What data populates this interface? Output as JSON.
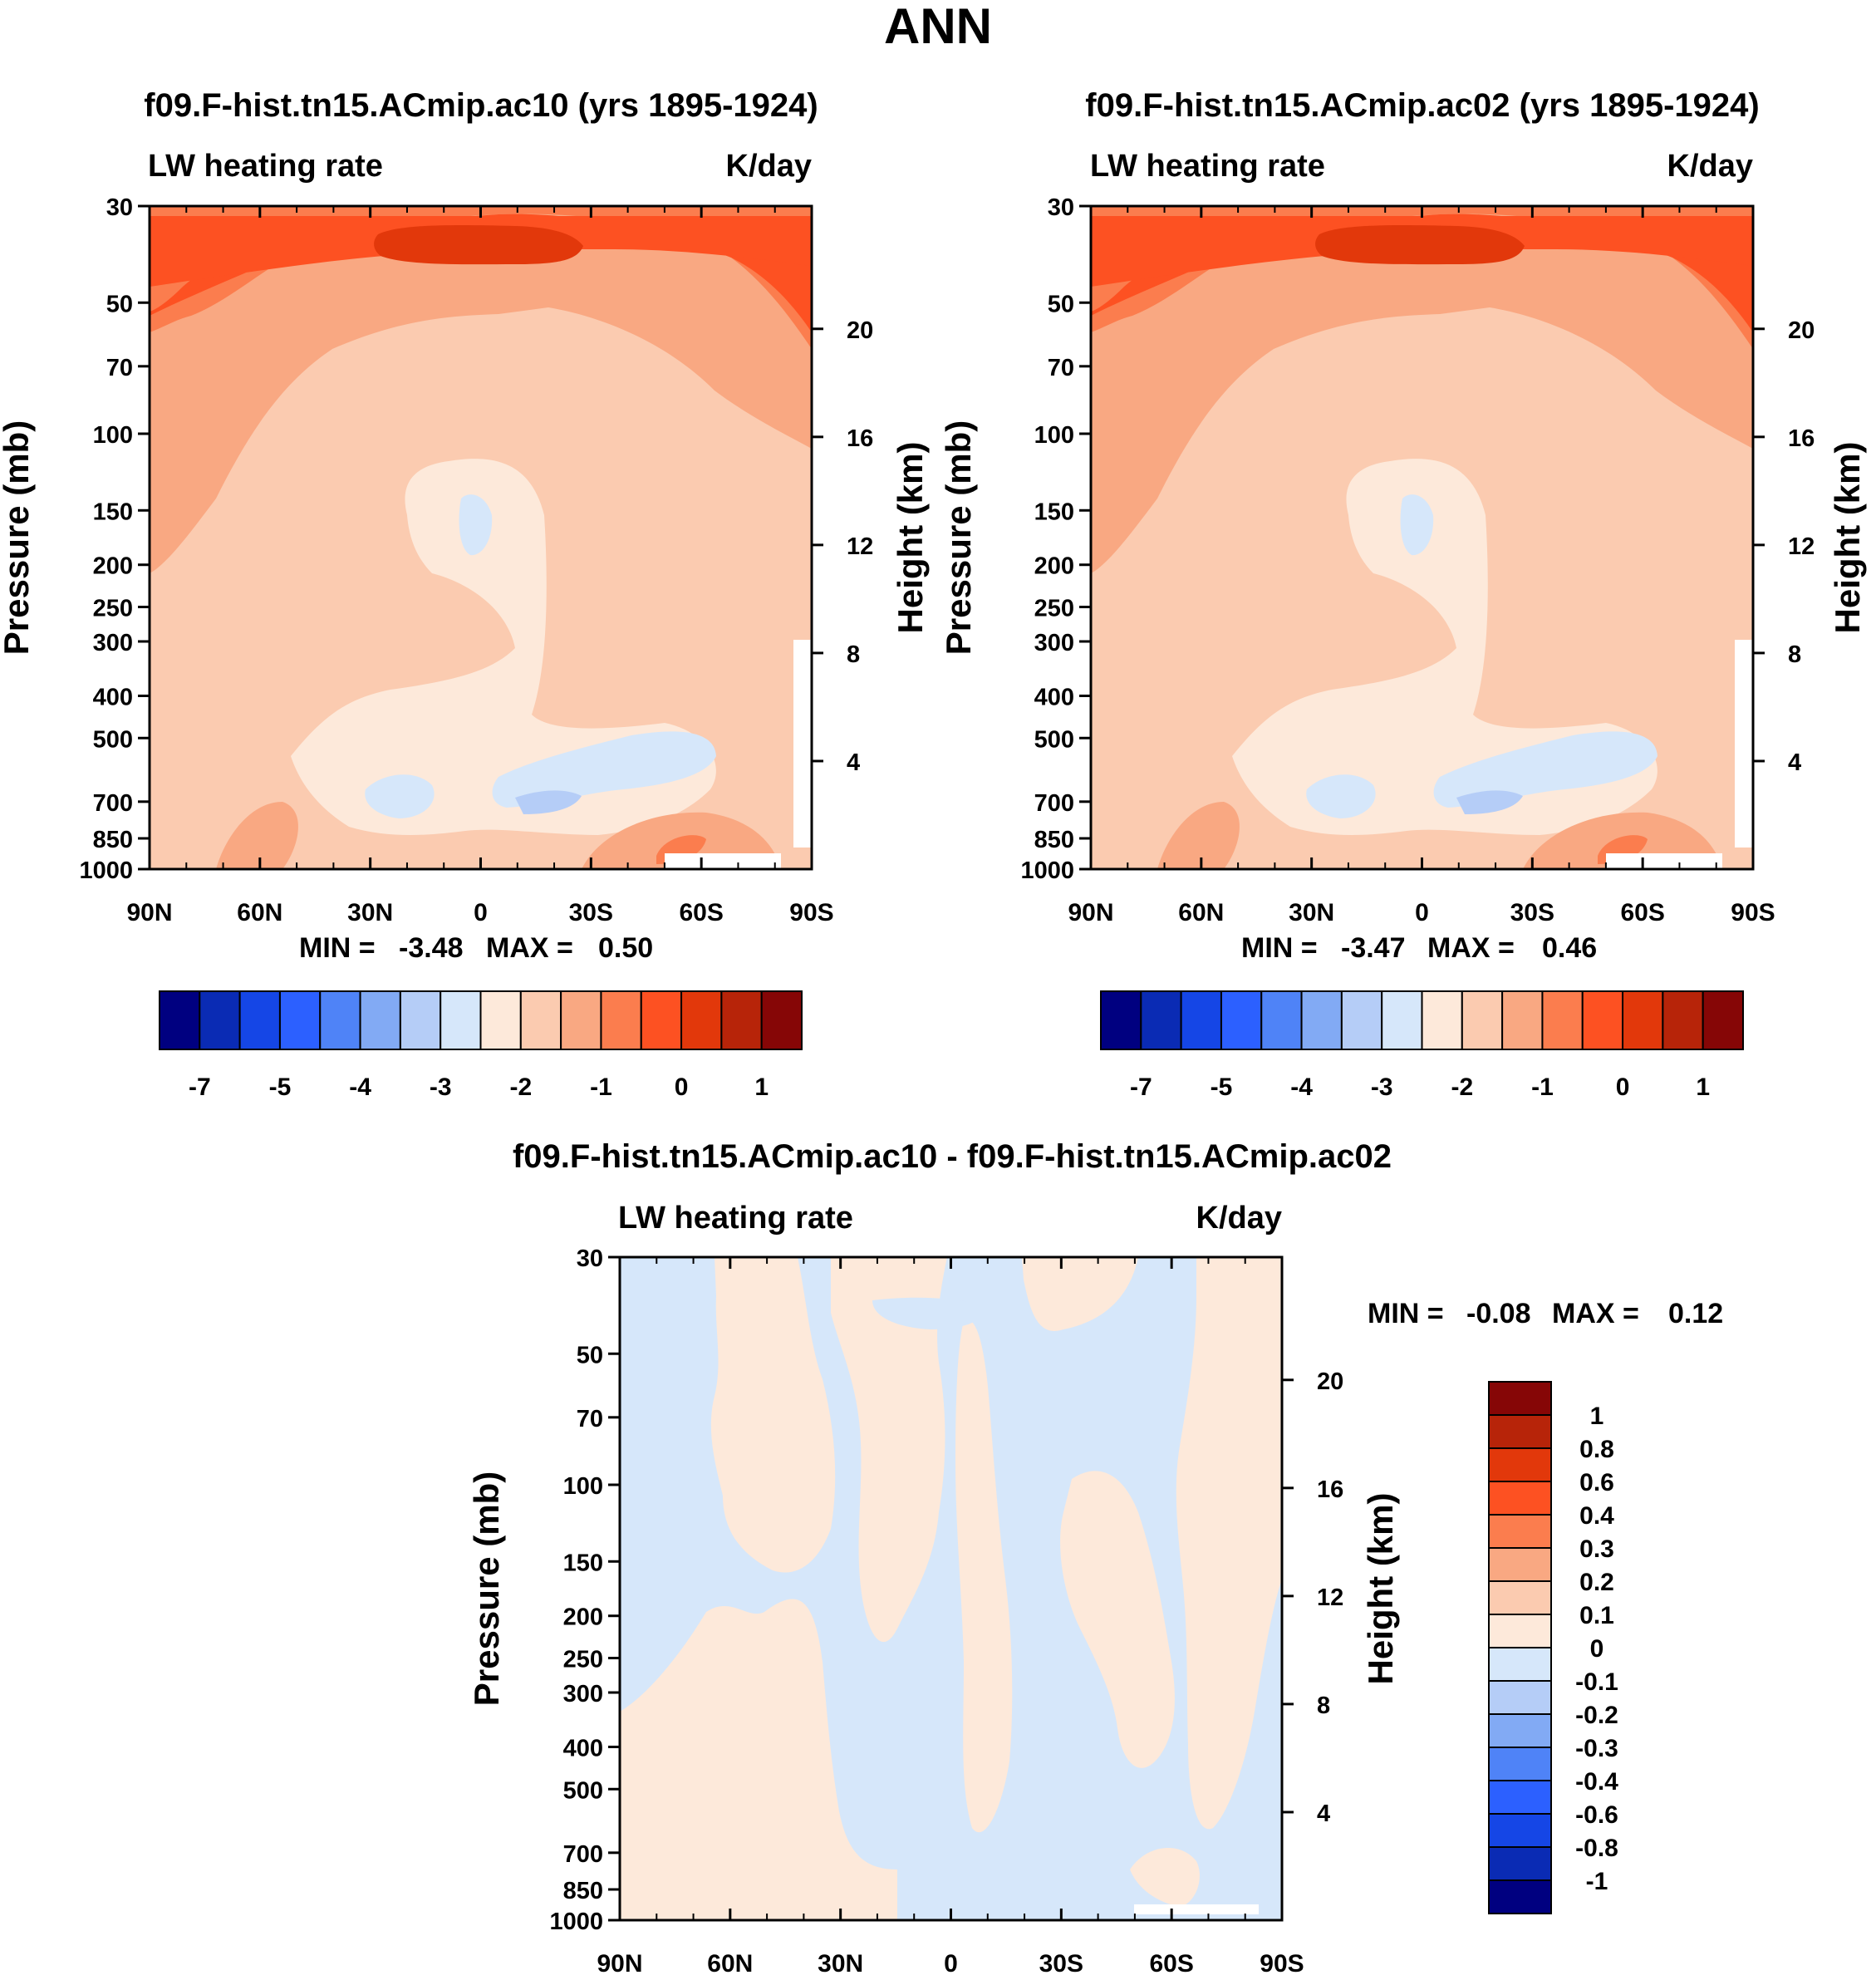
{
  "page_title": "ANN",
  "colors": {
    "blue_ramp": [
      "#000080",
      "#0a2bb4",
      "#1546e6",
      "#2c60ff",
      "#4f83f7",
      "#82aaf4",
      "#b5cdf7",
      "#d6e7fa"
    ],
    "red_ramp": [
      "#fde9da",
      "#fbcbb0",
      "#f9a882",
      "#fb7d4e",
      "#fd5122",
      "#e2380b",
      "#b72409",
      "#860606"
    ],
    "frame": "#000000",
    "background": "#ffffff"
  },
  "chart_data": [
    {
      "id": "panel1",
      "type": "heatmap",
      "title": "f09.F-hist.tn15.ACmip.ac10 (yrs 1895-1924)",
      "left_subtitle": "LW heating rate",
      "right_subtitle": "K/day",
      "xlabel": "",
      "ylabel": "Pressure (mb)",
      "y2label": "Height (km)",
      "x_ticks": [
        "90N",
        "60N",
        "30N",
        "0",
        "30S",
        "60S",
        "90S"
      ],
      "x_range": [
        90,
        -90
      ],
      "y_ticks": [
        "30",
        "50",
        "70",
        "100",
        "150",
        "200",
        "250",
        "300",
        "400",
        "500",
        "700",
        "850",
        "1000"
      ],
      "y_range_mb": [
        30,
        1000
      ],
      "y2_ticks": [
        "20",
        "16",
        "12",
        "8",
        "4"
      ],
      "stats": {
        "min_label": "MIN =",
        "min": "-3.48",
        "max_label": "MAX =",
        "max": "0.50"
      },
      "colorbar": {
        "orientation": "horizontal",
        "labels": [
          "-7",
          "-5",
          "-4",
          "-3",
          "-2",
          "-1",
          "0",
          "1"
        ]
      }
    },
    {
      "id": "panel2",
      "type": "heatmap",
      "title": "f09.F-hist.tn15.ACmip.ac02 (yrs 1895-1924)",
      "left_subtitle": "LW heating rate",
      "right_subtitle": "K/day",
      "xlabel": "",
      "ylabel": "Pressure (mb)",
      "y2label": "Height (km)",
      "x_ticks": [
        "90N",
        "60N",
        "30N",
        "0",
        "30S",
        "60S",
        "90S"
      ],
      "x_range": [
        90,
        -90
      ],
      "y_ticks": [
        "30",
        "50",
        "70",
        "100",
        "150",
        "200",
        "250",
        "300",
        "400",
        "500",
        "700",
        "850",
        "1000"
      ],
      "y_range_mb": [
        30,
        1000
      ],
      "y2_ticks": [
        "20",
        "16",
        "12",
        "8",
        "4"
      ],
      "stats": {
        "min_label": "MIN =",
        "min": "-3.47",
        "max_label": "MAX =",
        "max": "0.46"
      },
      "colorbar": {
        "orientation": "horizontal",
        "labels": [
          "-7",
          "-5",
          "-4",
          "-3",
          "-2",
          "-1",
          "0",
          "1"
        ]
      }
    },
    {
      "id": "panel3",
      "type": "heatmap",
      "title": "f09.F-hist.tn15.ACmip.ac10 - f09.F-hist.tn15.ACmip.ac02",
      "left_subtitle": "LW heating rate",
      "right_subtitle": "K/day",
      "xlabel": "",
      "ylabel": "Pressure (mb)",
      "y2label": "Height (km)",
      "x_ticks": [
        "90N",
        "60N",
        "30N",
        "0",
        "30S",
        "60S",
        "90S"
      ],
      "x_range": [
        90,
        -90
      ],
      "y_ticks": [
        "30",
        "50",
        "70",
        "100",
        "150",
        "200",
        "250",
        "300",
        "400",
        "500",
        "700",
        "850",
        "1000"
      ],
      "y_range_mb": [
        30,
        1000
      ],
      "y2_ticks": [
        "20",
        "16",
        "12",
        "8",
        "4"
      ],
      "stats": {
        "min_label": "MIN =",
        "min": "-0.08",
        "max_label": "MAX =",
        "max": "0.12"
      },
      "colorbar": {
        "orientation": "vertical",
        "labels": [
          "1",
          "0.8",
          "0.6",
          "0.4",
          "0.3",
          "0.2",
          "0.1",
          "0",
          "-0.1",
          "-0.2",
          "-0.3",
          "-0.4",
          "-0.6",
          "-0.8",
          "-1"
        ]
      }
    }
  ]
}
